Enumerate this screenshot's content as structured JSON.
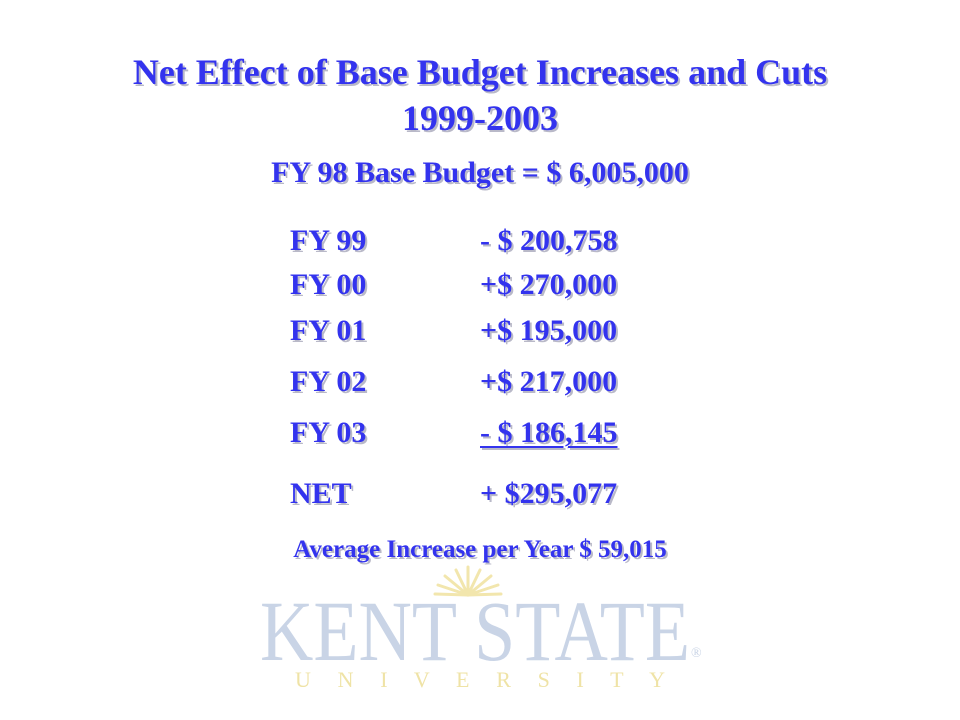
{
  "title_line1": "Net Effect of Base Budget Increases and Cuts",
  "title_line2": "1999-2003",
  "subtitle": "FY 98 Base Budget = $ 6,005,000",
  "rows": [
    {
      "label": "FY 99",
      "value": "- $ 200,758"
    },
    {
      "label": "FY 00",
      "value": "+$ 270,000"
    },
    {
      "label": "FY 01",
      "value": "+$ 195,000"
    },
    {
      "label": "FY 02",
      "value": "+$ 217,000"
    },
    {
      "label": "FY 03",
      "value": "- $ 186,145"
    },
    {
      "label": "NET",
      "value": "+ $295,077"
    }
  ],
  "average": "Average Increase per Year $ 59,015",
  "logo": {
    "wordmark": "KENT STATE",
    "subtext": "U N I V E R S I T Y",
    "registered": "®",
    "colors": {
      "wordmark": "#c9d4e6",
      "subtext": "#efe3a6",
      "sun": "#f2e6ad"
    }
  },
  "colors": {
    "text": "#3333ee",
    "shadow": "#b9b9c8",
    "background": "#ffffff"
  }
}
